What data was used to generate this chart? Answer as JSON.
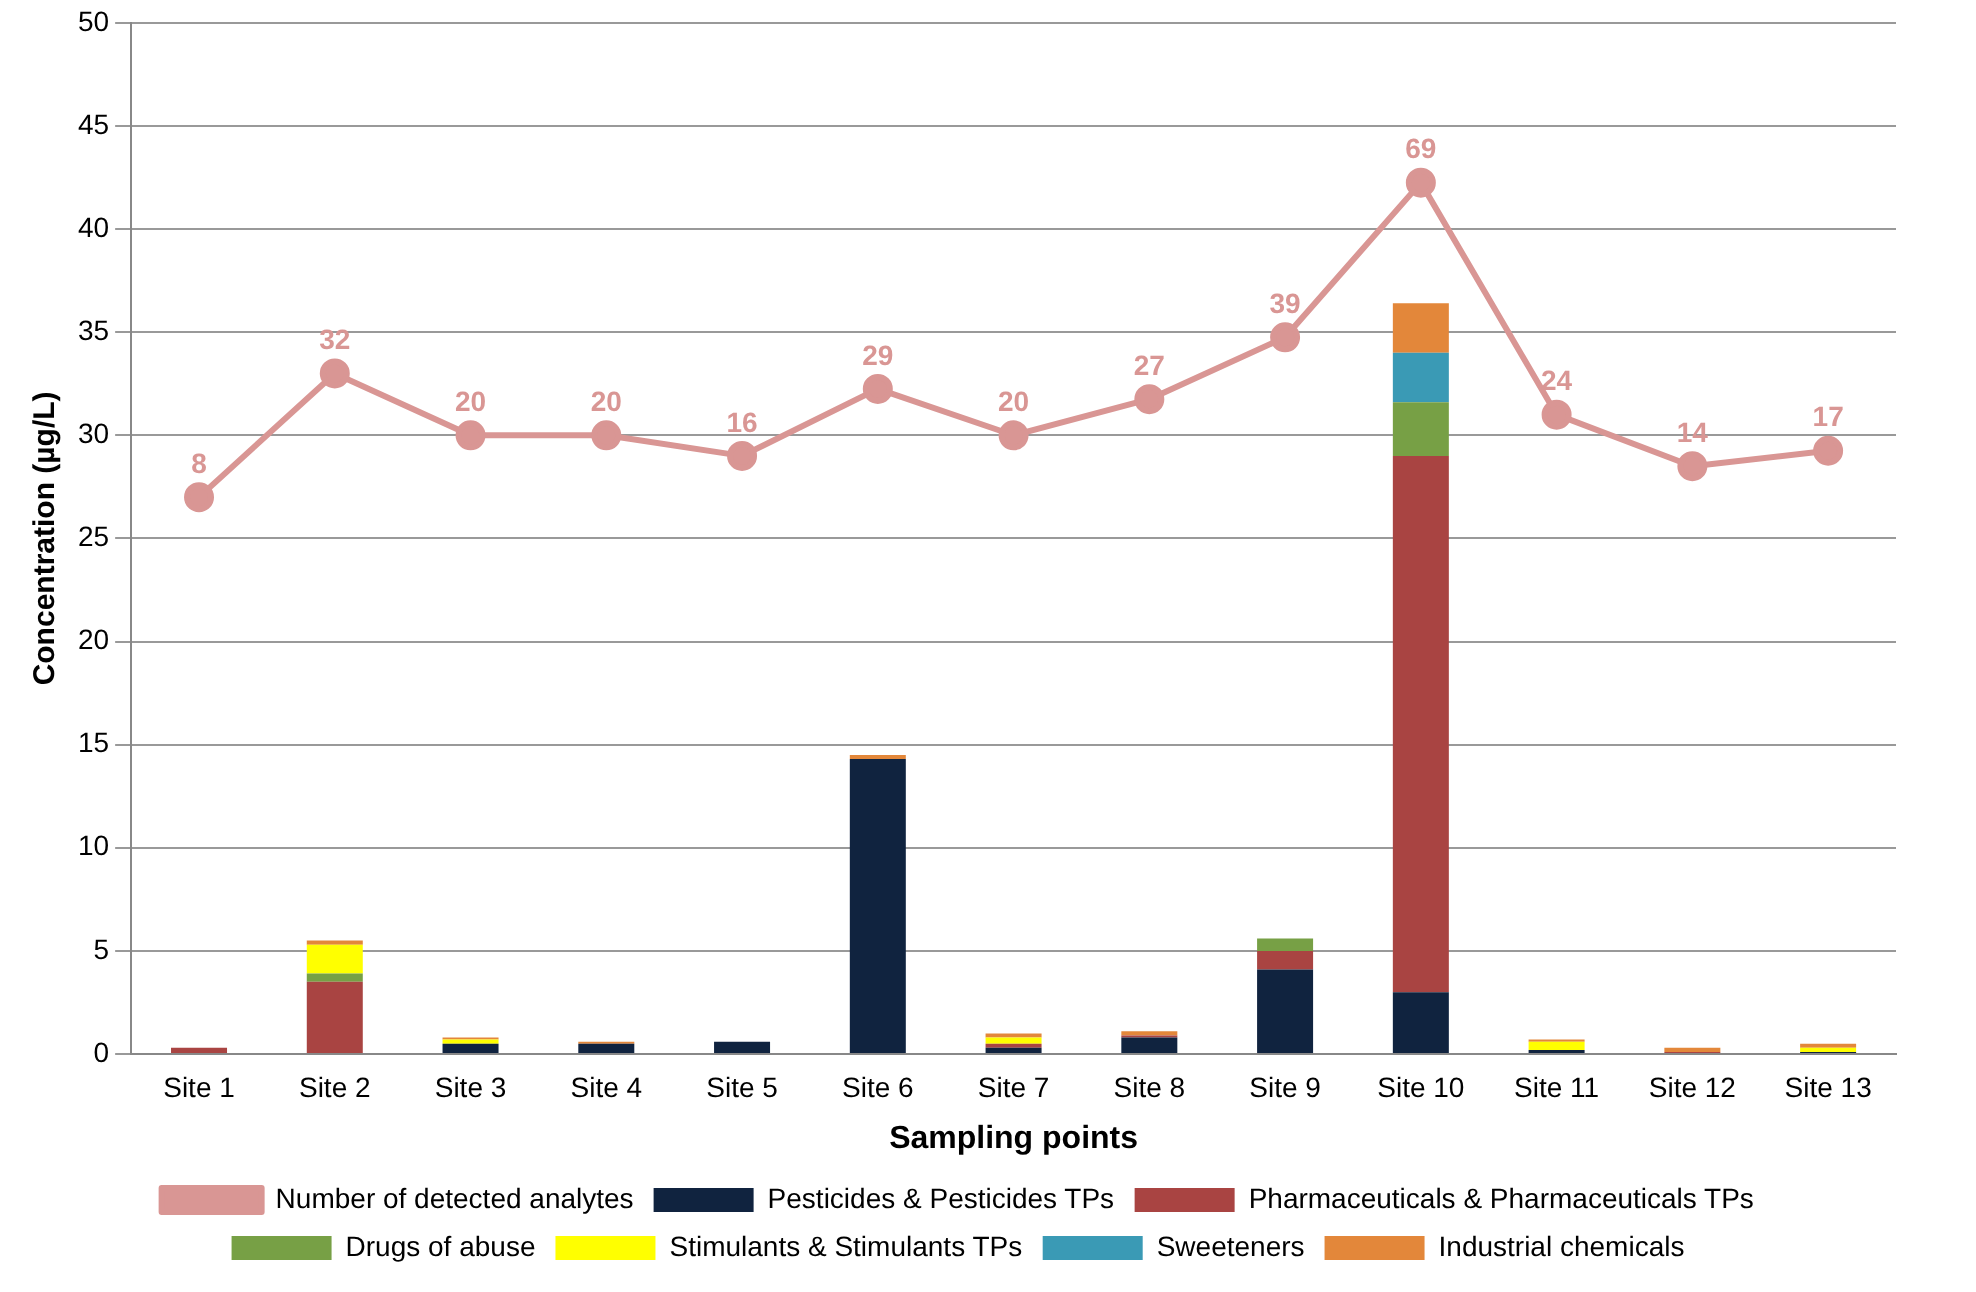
{
  "chart_data": {
    "type": "bar",
    "stacked": true,
    "xlabel": "Sampling points",
    "ylabel": "Concentration (µg/L)",
    "categories": [
      "Site 1",
      "Site 2",
      "Site 3",
      "Site 4",
      "Site 5",
      "Site 6",
      "Site 7",
      "Site 8",
      "Site 9",
      "Site 10",
      "Site 11",
      "Site 12",
      "Site 13"
    ],
    "series": [
      {
        "name": "Pesticides & Pesticides TPs",
        "color": "#10233f",
        "values": [
          0,
          0,
          0.5,
          0.5,
          0.6,
          14.3,
          0.3,
          0.8,
          4.1,
          3,
          0.2,
          0,
          0.1
        ]
      },
      {
        "name": "Pharmaceuticals & Pharmaceuticals TPs",
        "color": "#a94442",
        "values": [
          0.3,
          3.5,
          0,
          0,
          0,
          0,
          0.2,
          0.1,
          0.9,
          26,
          0,
          0.1,
          0
        ]
      },
      {
        "name": "Drugs of abuse",
        "color": "#77a045",
        "values": [
          0,
          0.4,
          0,
          0,
          0,
          0,
          0,
          0,
          0.6,
          2.6,
          0,
          0,
          0
        ]
      },
      {
        "name": "Stimulants & Stimulants TPs",
        "color": "#ffff00",
        "values": [
          0,
          1.4,
          0.2,
          0,
          0,
          0,
          0.3,
          0,
          0,
          0,
          0.4,
          0,
          0.2
        ]
      },
      {
        "name": "Sweeteners",
        "color": "#3a9ab5",
        "values": [
          0,
          0,
          0,
          0,
          0,
          0,
          0,
          0,
          0,
          2.4,
          0,
          0,
          0
        ]
      },
      {
        "name": "Industrial chemicals",
        "color": "#e3873a",
        "values": [
          0,
          0.2,
          0.1,
          0.1,
          0,
          0.2,
          0.2,
          0.2,
          0,
          2.4,
          0.1,
          0.2,
          0.2
        ]
      },
      {
        "name": "Number of detected analytes",
        "type": "line",
        "axis": "y2",
        "color": "#d99694",
        "marker": "circle",
        "values": [
          8,
          32,
          20,
          20,
          16,
          29,
          20,
          27,
          39,
          69,
          24,
          14,
          17
        ],
        "value_labels": [
          "8",
          "32",
          "20",
          "20",
          "16",
          "29",
          "20",
          "27",
          "39",
          "69",
          "24",
          "14",
          "17"
        ]
      }
    ],
    "ylim": [
      0,
      50
    ],
    "yticks": [
      0,
      5,
      10,
      15,
      20,
      25,
      30,
      35,
      40,
      45,
      50
    ],
    "y2lim": [
      -100,
      100
    ],
    "tick_labels": "xy",
    "grid": "y",
    "legend": "bottom"
  }
}
